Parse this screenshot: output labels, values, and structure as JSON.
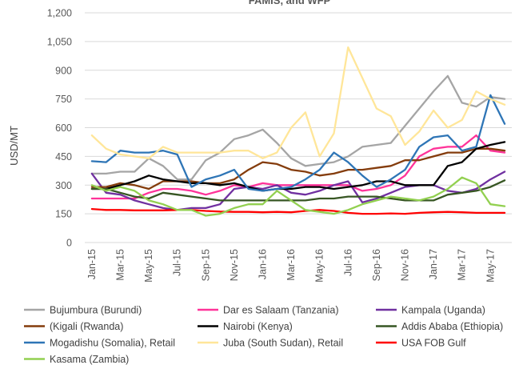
{
  "chart_data": {
    "type": "line",
    "title": "FAMIS, and WFP",
    "ylabel": "USD/MT",
    "xlabel": "",
    "ylim": [
      0,
      1200
    ],
    "yticks": [
      0,
      150,
      300,
      450,
      600,
      750,
      900,
      1050,
      1200
    ],
    "ytick_labels": [
      "0",
      "150",
      "300",
      "450",
      "600",
      "750",
      "900",
      "1,050",
      "1,200"
    ],
    "x": [
      "Jan-15",
      "Feb-15",
      "Mar-15",
      "Apr-15",
      "May-15",
      "Jun-15",
      "Jul-15",
      "Aug-15",
      "Sep-15",
      "Oct-15",
      "Nov-15",
      "Dec-15",
      "Jan-16",
      "Feb-16",
      "Mar-16",
      "Apr-16",
      "May-16",
      "Jun-16",
      "Jul-16",
      "Aug-16",
      "Sep-16",
      "Oct-16",
      "Nov-16",
      "Dec-16",
      "Jan-17",
      "Feb-17",
      "Mar-17",
      "Apr-17",
      "May-17",
      "Jun-17"
    ],
    "xtick_labels": [
      "Jan-15",
      "Mar-15",
      "May-15",
      "Jul-15",
      "Sep-15",
      "Nov-15",
      "Jan-16",
      "Mar-16",
      "May-16",
      "Jul-16",
      "Sep-16",
      "Nov-16",
      "Jan-17",
      "Mar-17",
      "May-17"
    ],
    "grid": true,
    "legend_position": "bottom",
    "series": [
      {
        "name": "Bujumbura (Burundi)",
        "color": "#a5a5a5",
        "values": [
          360,
          360,
          370,
          370,
          440,
          400,
          330,
          330,
          430,
          470,
          540,
          560,
          590,
          520,
          440,
          400,
          410,
          420,
          450,
          500,
          510,
          520,
          610,
          700,
          790,
          870,
          730,
          710,
          760,
          750
        ]
      },
      {
        "name": "Dar es Salaam (Tanzania)",
        "color": "#ff3399",
        "values": [
          230,
          230,
          230,
          230,
          260,
          280,
          280,
          270,
          250,
          270,
          300,
          290,
          310,
          300,
          300,
          300,
          300,
          300,
          300,
          270,
          280,
          300,
          350,
          450,
          490,
          500,
          500,
          560,
          480,
          470
        ]
      },
      {
        "name": "Kampala (Uganda)",
        "color": "#7030a0",
        "values": [
          360,
          260,
          250,
          220,
          200,
          180,
          170,
          180,
          180,
          200,
          280,
          290,
          280,
          300,
          260,
          250,
          270,
          300,
          320,
          210,
          230,
          260,
          290,
          300,
          300,
          270,
          260,
          280,
          330,
          370
        ]
      },
      {
        "name": "(Kigali (Rwanda)",
        "color": "#843c0c",
        "values": [
          290,
          290,
          310,
          300,
          280,
          320,
          320,
          320,
          310,
          310,
          330,
          380,
          420,
          410,
          380,
          370,
          350,
          360,
          380,
          380,
          390,
          400,
          430,
          430,
          450,
          470,
          470,
          490,
          490,
          480
        ]
      },
      {
        "name": "Nairobi (Kenya)",
        "color": "#000000",
        "values": [
          280,
          280,
          300,
          320,
          350,
          330,
          320,
          310,
          310,
          300,
          310,
          290,
          270,
          280,
          280,
          290,
          290,
          280,
          290,
          300,
          320,
          320,
          300,
          300,
          300,
          400,
          420,
          490,
          510,
          525
        ]
      },
      {
        "name": "Addis Ababa (Ethiopia)",
        "color": "#375623",
        "values": [
          280,
          280,
          260,
          240,
          230,
          260,
          250,
          240,
          230,
          220,
          220,
          220,
          220,
          220,
          220,
          220,
          230,
          230,
          240,
          240,
          240,
          230,
          220,
          220,
          220,
          250,
          260,
          270,
          290,
          325
        ]
      },
      {
        "name": "Mogadishu (Somalia), Retail",
        "color": "#2e75b6",
        "values": [
          425,
          420,
          480,
          470,
          470,
          480,
          460,
          290,
          330,
          350,
          380,
          280,
          270,
          280,
          290,
          330,
          380,
          470,
          420,
          350,
          290,
          330,
          380,
          500,
          550,
          560,
          480,
          500,
          770,
          620
        ]
      },
      {
        "name": "Juba (South Sudan), Retail",
        "color": "#ffe699",
        "values": [
          560,
          490,
          460,
          450,
          440,
          500,
          470,
          470,
          470,
          470,
          480,
          480,
          440,
          470,
          600,
          680,
          450,
          570,
          1020,
          860,
          700,
          660,
          510,
          580,
          690,
          600,
          640,
          790,
          750,
          720
        ]
      },
      {
        "name": "USA FOB Gulf",
        "color": "#ff0000",
        "values": [
          175,
          170,
          170,
          168,
          168,
          168,
          170,
          170,
          165,
          162,
          160,
          160,
          158,
          160,
          158,
          165,
          170,
          165,
          155,
          150,
          150,
          152,
          150,
          155,
          158,
          160,
          158,
          155,
          155,
          155
        ]
      },
      {
        "name": "Kasama (Zambia)",
        "color": "#92d050",
        "values": [
          300,
          270,
          290,
          270,
          220,
          200,
          170,
          170,
          140,
          150,
          180,
          200,
          200,
          270,
          220,
          170,
          160,
          150,
          170,
          200,
          220,
          240,
          230,
          220,
          240,
          280,
          340,
          310,
          200,
          190
        ]
      }
    ]
  }
}
